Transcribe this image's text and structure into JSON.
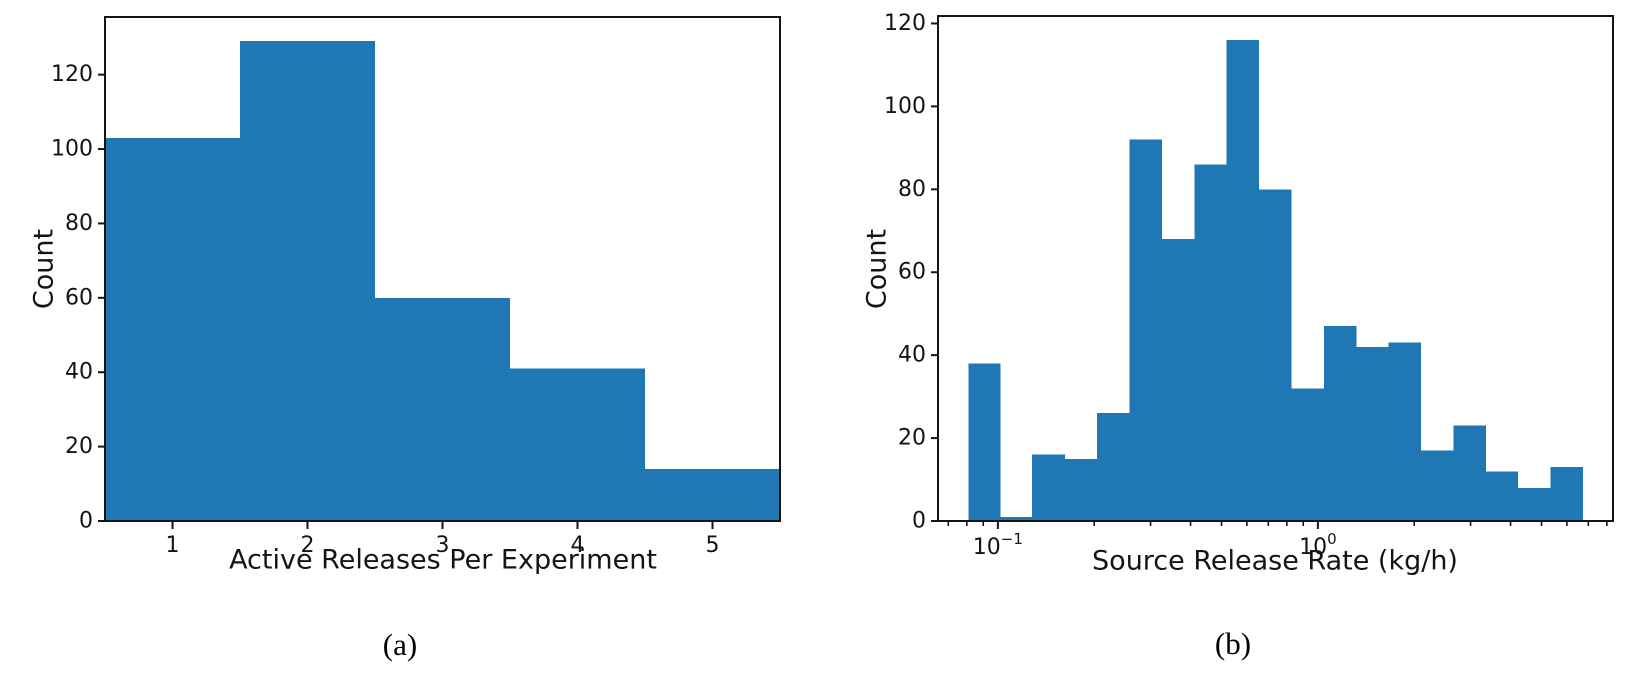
{
  "figure": {
    "background": "#ffffff"
  },
  "colors": {
    "bar": "#1f77b4",
    "axis": "#141414",
    "text": "#141414"
  },
  "chart_data": [
    {
      "type": "bar",
      "subtype": "histogram",
      "caption": "(a)",
      "xlabel": "Active Releases Per Experiment",
      "ylabel": "Count",
      "xscale": "linear",
      "bin_edges": [
        0.5,
        1.5,
        2.5,
        3.5,
        4.5,
        5.5
      ],
      "values": [
        103,
        129,
        60,
        41,
        14
      ],
      "xticks": [
        {
          "v": 1,
          "label": "1"
        },
        {
          "v": 2,
          "label": "2"
        },
        {
          "v": 3,
          "label": "3"
        },
        {
          "v": 4,
          "label": "4"
        },
        {
          "v": 5,
          "label": "5"
        }
      ],
      "minor_xticks": [],
      "yticks": [
        0,
        20,
        40,
        60,
        80,
        100,
        120
      ],
      "xlim": [
        0.5,
        5.5
      ],
      "ylim": [
        0,
        135.5
      ],
      "grid": false,
      "legend": "none"
    },
    {
      "type": "bar",
      "subtype": "histogram",
      "caption": "(b)",
      "xlabel": "Source Release Rate (kg/h)",
      "ylabel": "Count",
      "xscale": "log",
      "bin_edges": [
        0.081,
        0.102,
        0.128,
        0.162,
        0.204,
        0.258,
        0.326,
        0.411,
        0.519,
        0.655,
        0.827,
        1.044,
        1.318,
        1.664,
        2.1,
        2.651,
        3.347,
        4.224,
        5.332,
        6.73
      ],
      "values": [
        38,
        1,
        16,
        15,
        26,
        92,
        68,
        86,
        116,
        80,
        32,
        47,
        42,
        43,
        17,
        23,
        12,
        8,
        13
      ],
      "xticks": [
        {
          "v": 0.1,
          "base": "10",
          "exp": "−1"
        },
        {
          "v": 1,
          "base": "10",
          "exp": "0"
        }
      ],
      "minor_xticks": [
        0.07,
        0.08,
        0.09,
        0.2,
        0.3,
        0.4,
        0.5,
        0.6,
        0.7,
        0.8,
        0.9,
        2,
        3,
        4,
        5,
        6,
        7,
        8
      ],
      "yticks": [
        0,
        20,
        40,
        60,
        80,
        100,
        120
      ],
      "xlim": [
        0.065,
        8.36
      ],
      "ylim": [
        0,
        121.8
      ],
      "grid": false,
      "legend": "none"
    }
  ]
}
